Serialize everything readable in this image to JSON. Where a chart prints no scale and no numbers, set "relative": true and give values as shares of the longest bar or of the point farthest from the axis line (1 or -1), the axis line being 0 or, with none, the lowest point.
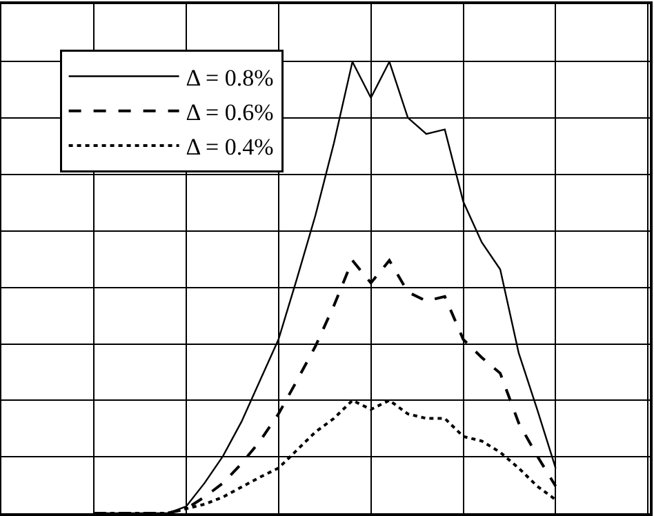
{
  "chart_data": {
    "type": "line",
    "relative": true,
    "grid": true,
    "legend": "top left",
    "marker": "none",
    "categories": [
      null,
      null,
      null,
      null,
      null,
      null,
      null,
      null,
      null,
      null,
      null,
      null,
      null,
      null,
      null,
      null,
      null,
      null,
      null,
      null,
      null,
      null,
      null,
      null,
      null,
      null,
      null,
      null,
      null,
      null,
      null,
      null,
      null,
      null,
      null,
      null
    ],
    "series": [
      {
        "name": "Δ = 0.8%",
        "color": "#000000",
        "line_style": "solid",
        "values": [
          null,
          null,
          null,
          null,
          null,
          0,
          0,
          0,
          0,
          0,
          0.015,
          0.067,
          0.127,
          0.203,
          0.294,
          0.385,
          0.52,
          0.66,
          0.82,
          1.0,
          0.92,
          1.0,
          0.876,
          0.84,
          0.85,
          0.69,
          0.6,
          0.54,
          0.355,
          0.23,
          0.1,
          null,
          null,
          null,
          null,
          null
        ]
      },
      {
        "name": "Δ = 0.6%",
        "color": "#000000",
        "line_style": "dashed",
        "values": [
          null,
          null,
          null,
          null,
          null,
          0,
          0,
          0,
          0,
          0,
          0.01,
          0.036,
          0.067,
          0.11,
          0.16,
          0.22,
          0.294,
          0.37,
          0.46,
          0.56,
          0.51,
          0.56,
          0.49,
          0.47,
          0.48,
          0.385,
          0.345,
          0.31,
          0.2,
          0.127,
          0.06,
          null,
          null,
          null,
          null,
          null
        ]
      },
      {
        "name": "Δ = 0.4%",
        "color": "#000000",
        "line_style": "dotted",
        "values": [
          null,
          null,
          null,
          null,
          null,
          0,
          0,
          0,
          0,
          0,
          0.01,
          0.02,
          0.036,
          0.058,
          0.08,
          0.1,
          0.14,
          0.18,
          0.21,
          0.25,
          0.23,
          0.25,
          0.22,
          0.21,
          0.21,
          0.17,
          0.16,
          0.135,
          0.1,
          0.06,
          0.03,
          null,
          null,
          null,
          null,
          null
        ]
      }
    ]
  }
}
